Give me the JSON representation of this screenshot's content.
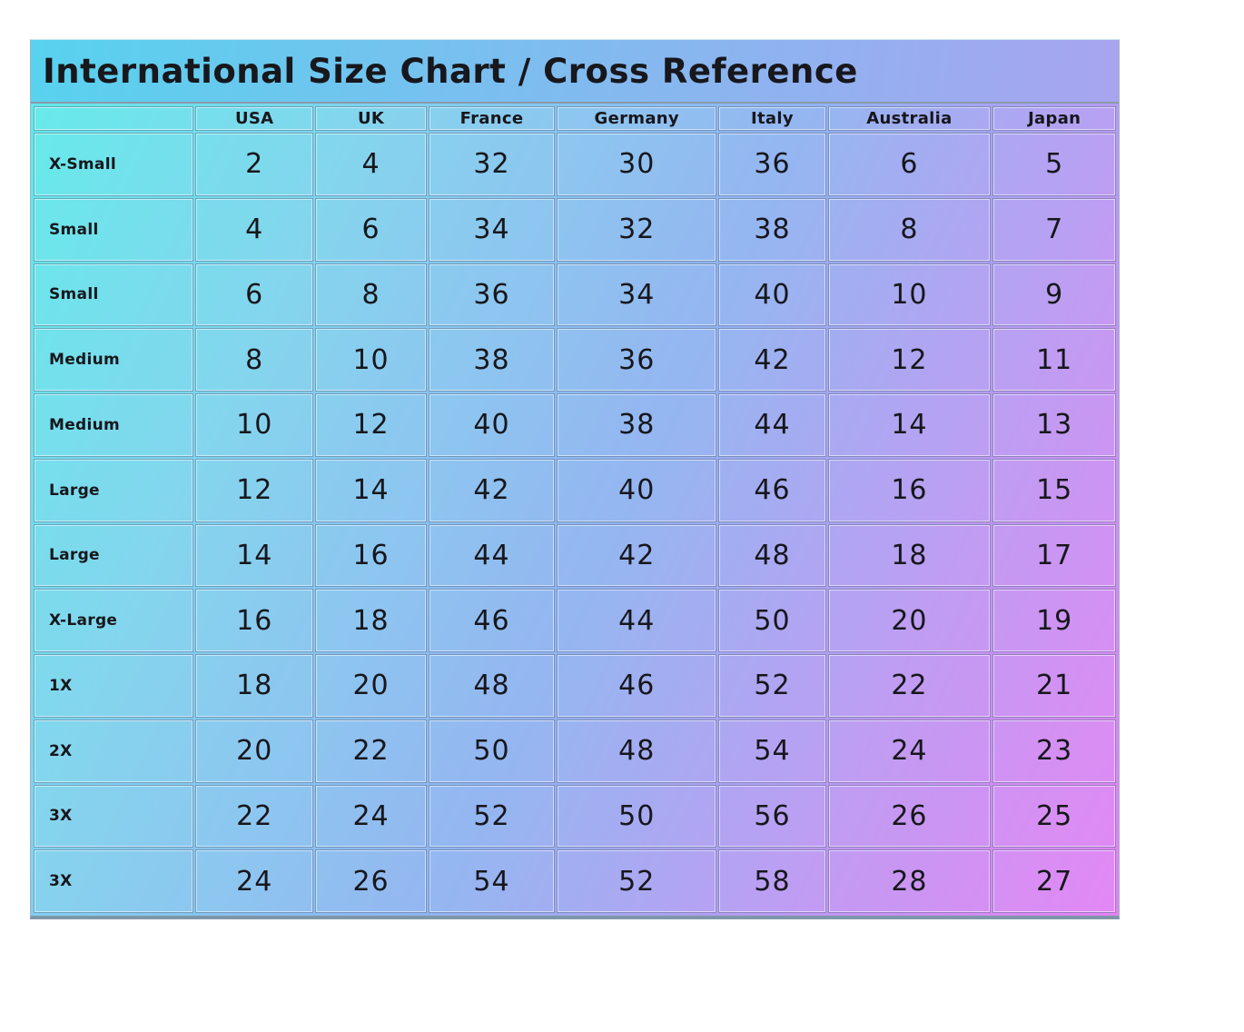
{
  "title": "International Size Chart / Cross Reference",
  "chart_data": {
    "type": "table",
    "title": "International Size Chart / Cross Reference",
    "columns": [
      "",
      "USA",
      "UK",
      "France",
      "Germany",
      "Italy",
      "Australia",
      "Japan"
    ],
    "rows": [
      {
        "label": "X-Small",
        "values": [
          2,
          4,
          32,
          30,
          36,
          6,
          5
        ]
      },
      {
        "label": "Small",
        "values": [
          4,
          6,
          34,
          32,
          38,
          8,
          7
        ]
      },
      {
        "label": "Small",
        "values": [
          6,
          8,
          36,
          34,
          40,
          10,
          9
        ]
      },
      {
        "label": "Medium",
        "values": [
          8,
          10,
          38,
          36,
          42,
          12,
          11
        ]
      },
      {
        "label": "Medium",
        "values": [
          10,
          12,
          40,
          38,
          44,
          14,
          13
        ]
      },
      {
        "label": "Large",
        "values": [
          12,
          14,
          42,
          40,
          46,
          16,
          15
        ]
      },
      {
        "label": "Large",
        "values": [
          14,
          16,
          44,
          42,
          48,
          18,
          17
        ]
      },
      {
        "label": "X-Large",
        "values": [
          16,
          18,
          46,
          44,
          50,
          20,
          19
        ]
      },
      {
        "label": "1X",
        "values": [
          18,
          20,
          48,
          46,
          52,
          22,
          21
        ]
      },
      {
        "label": "2X",
        "values": [
          20,
          22,
          50,
          48,
          54,
          24,
          23
        ]
      },
      {
        "label": "3X",
        "values": [
          22,
          24,
          52,
          50,
          56,
          26,
          25
        ]
      },
      {
        "label": "3X",
        "values": [
          24,
          26,
          54,
          52,
          58,
          28,
          27
        ]
      }
    ]
  },
  "colors": {
    "titlebar_left": "#58d2ee",
    "titlebar_right": "#a8a4f0",
    "gradient_cyan": "#5fe9e9",
    "gradient_blue": "#90b2f1",
    "gradient_magenta": "#e381f4",
    "text": "#17171c"
  }
}
